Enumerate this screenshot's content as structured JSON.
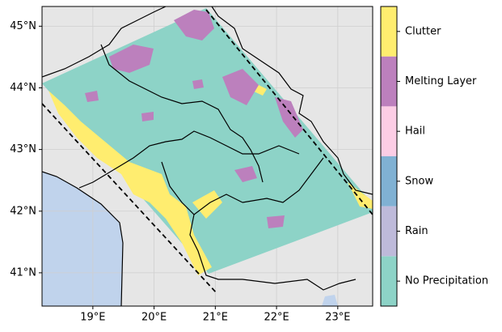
{
  "map": {
    "xlim": [
      18.17,
      23.57
    ],
    "ylim": [
      40.46,
      45.32
    ],
    "xticks": [
      {
        "value": 19,
        "label": "19°E"
      },
      {
        "value": 20,
        "label": "20°E"
      },
      {
        "value": 21,
        "label": "21°E"
      },
      {
        "value": 22,
        "label": "22°E"
      },
      {
        "value": 23,
        "label": "23°E"
      }
    ],
    "yticks": [
      {
        "value": 41,
        "label": "41°N"
      },
      {
        "value": 42,
        "label": "42°N"
      },
      {
        "value": 43,
        "label": "43°N"
      },
      {
        "value": 44,
        "label": "44°N"
      },
      {
        "value": 45,
        "label": "45°N"
      }
    ],
    "grid": true,
    "colorbar": {
      "categories": [
        "No Precipitation",
        "Rain",
        "Snow",
        "Hail",
        "Melting Layer",
        "Clutter"
      ],
      "colors": [
        "#8dd3c7",
        "#bebada",
        "#80b1d3",
        "#fccde5",
        "#bc80bd",
        "#ffed6f"
      ]
    }
  }
}
